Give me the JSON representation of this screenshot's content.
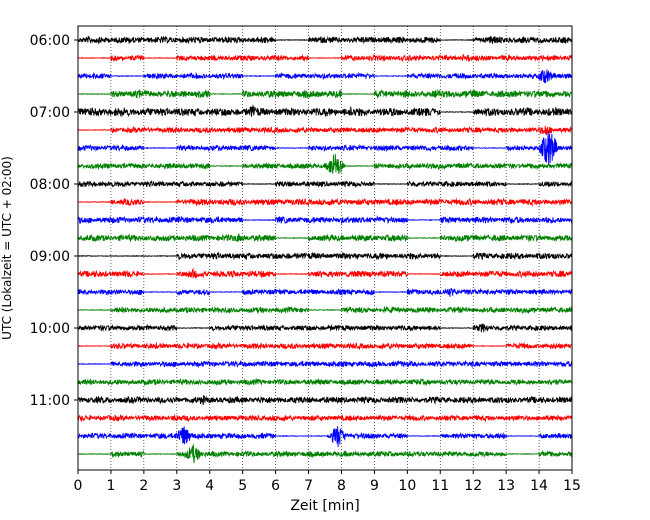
{
  "chart_data": {
    "type": "line",
    "title": "",
    "xlabel": "Zeit  [min]",
    "ylabel": "UTC (Lokalzeit = UTC + 02:00)",
    "xlim": [
      0,
      15
    ],
    "x_ticks": [
      "0",
      "1",
      "2",
      "3",
      "4",
      "5",
      "6",
      "7",
      "8",
      "9",
      "10",
      "11",
      "12",
      "13",
      "14",
      "15"
    ],
    "y_ticks": [
      "06:00",
      "07:00",
      "08:00",
      "09:00",
      "10:00",
      "11:00"
    ],
    "grid": "vertical dotted lines at each minute",
    "trace_interval_minutes": 15,
    "trace_colors_cycle": [
      "#000000",
      "#ff0000",
      "#0000ff",
      "#008000"
    ],
    "first_trace_utc": "06:00",
    "last_trace_utc": "11:45",
    "traces": [
      {
        "start": "06:00",
        "color": "#000000",
        "gaps": [
          [
            6.0,
            7.0
          ],
          [
            11.0,
            12.0
          ]
        ],
        "amplitude": 0.35,
        "events": [
          [
            12.6,
            0.5
          ]
        ]
      },
      {
        "start": "06:15",
        "color": "#ff0000",
        "gaps": [
          [
            0.0,
            1.0
          ],
          [
            2.0,
            3.0
          ],
          [
            7.0,
            8.0
          ],
          [
            13.0,
            13.0
          ]
        ],
        "amplitude": 0.3,
        "events": [
          [
            11.8,
            0.4
          ]
        ]
      },
      {
        "start": "06:30",
        "color": "#0000ff",
        "gaps": [
          [
            1.0,
            2.0
          ],
          [
            5.0,
            6.0
          ],
          [
            9.0,
            10.0
          ]
        ],
        "amplitude": 0.3,
        "events": [
          [
            14.2,
            0.8
          ]
        ]
      },
      {
        "start": "06:45",
        "color": "#008000",
        "gaps": [
          [
            0.0,
            1.0
          ],
          [
            4.0,
            5.0
          ],
          [
            8.0,
            9.0
          ]
        ],
        "amplitude": 0.4,
        "events": []
      },
      {
        "start": "07:00",
        "color": "#000000",
        "gaps": [
          [
            11.0,
            12.0
          ]
        ],
        "amplitude": 0.45,
        "events": [
          [
            5.3,
            0.7
          ],
          [
            8.3,
            0.6
          ]
        ]
      },
      {
        "start": "07:15",
        "color": "#ff0000",
        "gaps": [
          [
            0.0,
            1.0
          ]
        ],
        "amplitude": 0.3,
        "events": [
          [
            14.2,
            0.6
          ]
        ]
      },
      {
        "start": "07:30",
        "color": "#0000ff",
        "gaps": [
          [
            2.0,
            3.0
          ],
          [
            6.0,
            7.0
          ],
          [
            12.0,
            13.0
          ]
        ],
        "amplitude": 0.3,
        "events": [
          [
            14.3,
            2.0
          ]
        ]
      },
      {
        "start": "07:45",
        "color": "#008000",
        "gaps": [
          [
            4.0,
            5.0
          ],
          [
            8.0,
            9.0
          ]
        ],
        "amplitude": 0.3,
        "events": [
          [
            7.8,
            1.4
          ]
        ]
      },
      {
        "start": "08:00",
        "color": "#000000",
        "gaps": [
          [
            5.0,
            6.0
          ],
          [
            9.0,
            10.0
          ],
          [
            13.0,
            14.0
          ]
        ],
        "amplitude": 0.3,
        "events": []
      },
      {
        "start": "08:15",
        "color": "#ff0000",
        "gaps": [
          [
            0.0,
            1.0
          ],
          [
            2.0,
            3.0
          ]
        ],
        "amplitude": 0.35,
        "events": []
      },
      {
        "start": "08:30",
        "color": "#0000ff",
        "gaps": [
          [
            5.0,
            6.0
          ],
          [
            10.0,
            11.0
          ]
        ],
        "amplitude": 0.35,
        "events": []
      },
      {
        "start": "08:45",
        "color": "#008000",
        "gaps": [
          [
            6.0,
            7.0
          ],
          [
            10.0,
            11.0
          ]
        ],
        "amplitude": 0.35,
        "events": [
          [
            4.9,
            0.5
          ]
        ]
      },
      {
        "start": "09:00",
        "color": "#000000",
        "gaps": [
          [
            0.0,
            3.0
          ],
          [
            11.0,
            12.0
          ]
        ],
        "amplitude": 0.35,
        "events": []
      },
      {
        "start": "09:15",
        "color": "#ff0000",
        "gaps": [
          [
            1.0,
            1.0
          ],
          [
            2.0,
            3.0
          ],
          [
            6.0,
            7.0
          ],
          [
            10.0,
            11.0
          ]
        ],
        "amplitude": 0.35,
        "events": [
          [
            3.5,
            0.5
          ]
        ]
      },
      {
        "start": "09:30",
        "color": "#0000ff",
        "gaps": [
          [
            2.0,
            3.0
          ],
          [
            4.0,
            5.0
          ],
          [
            9.0,
            10.0
          ]
        ],
        "amplitude": 0.3,
        "events": [
          [
            11.3,
            0.5
          ]
        ]
      },
      {
        "start": "09:45",
        "color": "#008000",
        "gaps": [
          [
            0.0,
            1.0
          ],
          [
            7.0,
            8.0
          ]
        ],
        "amplitude": 0.3,
        "events": []
      },
      {
        "start": "10:00",
        "color": "#000000",
        "gaps": [
          [
            3.0,
            4.0
          ],
          [
            11.0,
            12.0
          ]
        ],
        "amplitude": 0.3,
        "events": [
          [
            12.3,
            0.5
          ]
        ]
      },
      {
        "start": "10:15",
        "color": "#ff0000",
        "gaps": [
          [
            0.0,
            1.0
          ],
          [
            12.0,
            13.0
          ]
        ],
        "amplitude": 0.3,
        "events": []
      },
      {
        "start": "10:30",
        "color": "#0000ff",
        "gaps": [
          [
            0.0,
            1.0
          ]
        ],
        "amplitude": 0.3,
        "events": []
      },
      {
        "start": "10:45",
        "color": "#008000",
        "gaps": [],
        "amplitude": 0.3,
        "events": []
      },
      {
        "start": "11:00",
        "color": "#000000",
        "gaps": [],
        "amplitude": 0.35,
        "events": [
          [
            3.8,
            0.5
          ]
        ]
      },
      {
        "start": "11:15",
        "color": "#ff0000",
        "gaps": [],
        "amplitude": 0.3,
        "events": [
          [
            3.0,
            0.4
          ]
        ]
      },
      {
        "start": "11:30",
        "color": "#0000ff",
        "gaps": [
          [
            6.0,
            8.0
          ],
          [
            10.0,
            11.0
          ],
          [
            13.0,
            14.0
          ]
        ],
        "amplitude": 0.3,
        "events": [
          [
            3.2,
            1.1
          ],
          [
            7.9,
            1.2
          ]
        ]
      },
      {
        "start": "11:45",
        "color": "#008000",
        "gaps": [
          [
            0.0,
            1.0
          ],
          [
            2.0,
            3.0
          ],
          [
            13.0,
            14.0
          ]
        ],
        "amplitude": 0.3,
        "events": [
          [
            3.5,
            1.0
          ]
        ]
      }
    ]
  }
}
